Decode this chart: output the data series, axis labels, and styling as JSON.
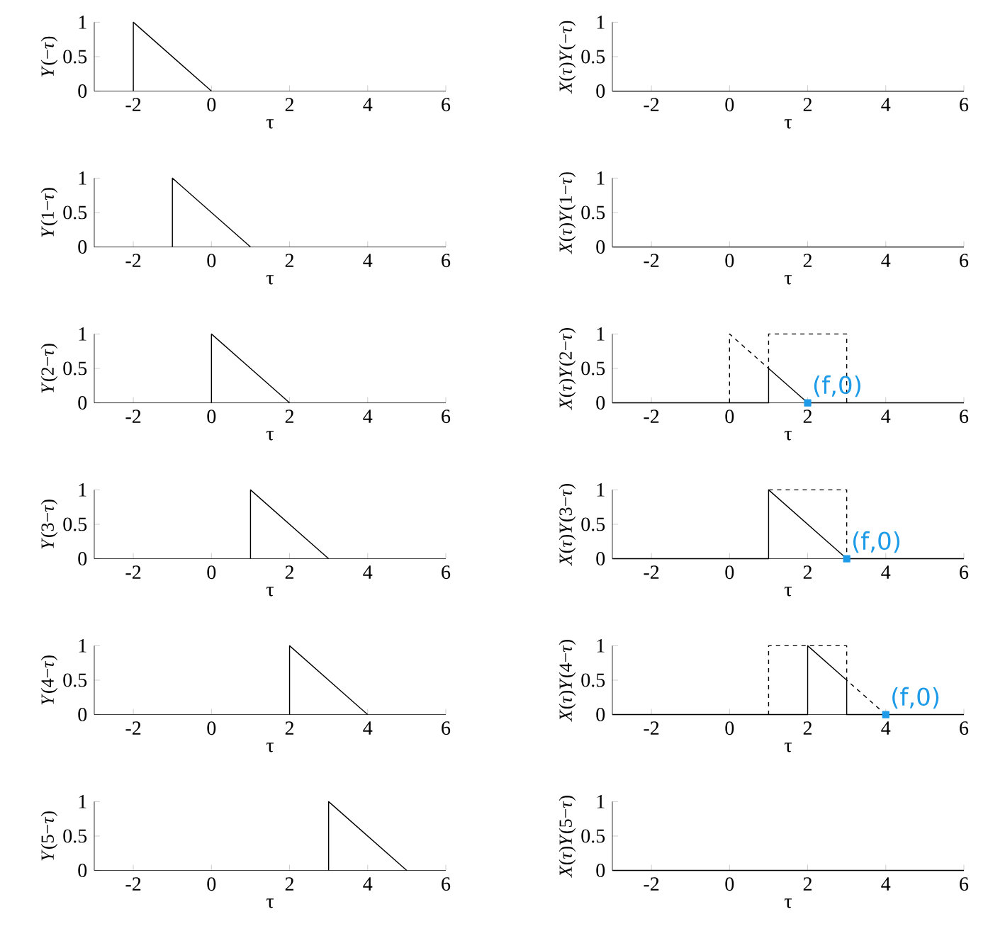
{
  "chart_data": [
    {
      "type": "line",
      "xlabel": "τ",
      "ylabel": "*Y*(−*τ*)",
      "xlim": [
        -3,
        6
      ],
      "xticks": [
        -2,
        0,
        2,
        4,
        6
      ],
      "ylim": [
        0,
        1
      ],
      "yticks": [
        0,
        0.5,
        1
      ],
      "series": [
        {
          "x": [
            -2,
            -2,
            0
          ],
          "values": [
            0,
            1,
            0
          ],
          "color": "#000000",
          "line_style": "solid"
        }
      ]
    },
    {
      "type": "line",
      "xlabel": "τ",
      "ylabel": "*X*(*τ*)*Y*(−*τ*)",
      "xlim": [
        -3,
        6
      ],
      "xticks": [
        -2,
        0,
        2,
        4,
        6
      ],
      "ylim": [
        0,
        1
      ],
      "yticks": [
        0,
        0.5,
        1
      ],
      "series": [
        {
          "x": [
            -3,
            6
          ],
          "values": [
            0,
            0
          ],
          "color": "#000000",
          "line_style": "solid"
        }
      ]
    },
    {
      "type": "line",
      "xlabel": "τ",
      "ylabel": "*Y*(1−*τ*)",
      "xlim": [
        -3,
        6
      ],
      "xticks": [
        -2,
        0,
        2,
        4,
        6
      ],
      "ylim": [
        0,
        1
      ],
      "yticks": [
        0,
        0.5,
        1
      ],
      "series": [
        {
          "x": [
            -1,
            -1,
            1
          ],
          "values": [
            0,
            1,
            0
          ],
          "color": "#000000",
          "line_style": "solid"
        }
      ]
    },
    {
      "type": "line",
      "xlabel": "τ",
      "ylabel": "*X*(*τ*)*Y*(1−*τ*)",
      "xlim": [
        -3,
        6
      ],
      "xticks": [
        -2,
        0,
        2,
        4,
        6
      ],
      "ylim": [
        0,
        1
      ],
      "yticks": [
        0,
        0.5,
        1
      ],
      "series": [
        {
          "x": [
            -3,
            6
          ],
          "values": [
            0,
            0
          ],
          "color": "#000000",
          "line_style": "solid"
        }
      ]
    },
    {
      "type": "line",
      "xlabel": "τ",
      "ylabel": "*Y*(2−*τ*)",
      "xlim": [
        -3,
        6
      ],
      "xticks": [
        -2,
        0,
        2,
        4,
        6
      ],
      "ylim": [
        0,
        1
      ],
      "yticks": [
        0,
        0.5,
        1
      ],
      "series": [
        {
          "x": [
            0,
            0,
            2
          ],
          "values": [
            0,
            1,
            0
          ],
          "color": "#000000",
          "line_style": "solid"
        }
      ]
    },
    {
      "type": "line",
      "xlabel": "τ",
      "ylabel": "*X*(*τ*)*Y*(2−*τ*)",
      "xlim": [
        -3,
        6
      ],
      "xticks": [
        -2,
        0,
        2,
        4,
        6
      ],
      "ylim": [
        0,
        1
      ],
      "yticks": [
        0,
        0.5,
        1
      ],
      "series": [
        {
          "x": [
            0,
            0,
            1,
            1,
            3,
            3
          ],
          "values": [
            0,
            1,
            0.5,
            1,
            1,
            0
          ],
          "color": "#000000",
          "line_style": "dashed"
        },
        {
          "x": [
            -3,
            1,
            1,
            2,
            6
          ],
          "values": [
            0,
            0,
            0.5,
            0,
            0
          ],
          "color": "#000000",
          "line_style": "solid"
        },
        {
          "type": "scatter",
          "x": [
            2
          ],
          "values": [
            0
          ],
          "color": "#1e9be8",
          "marker": "square"
        }
      ],
      "annotations": [
        {
          "text": "(f,0)",
          "x": 2,
          "y": 0
        }
      ]
    },
    {
      "type": "line",
      "xlabel": "τ",
      "ylabel": "*Y*(3−*τ*)",
      "xlim": [
        -3,
        6
      ],
      "xticks": [
        -2,
        0,
        2,
        4,
        6
      ],
      "ylim": [
        0,
        1
      ],
      "yticks": [
        0,
        0.5,
        1
      ],
      "series": [
        {
          "x": [
            1,
            1,
            3
          ],
          "values": [
            0,
            1,
            0
          ],
          "color": "#000000",
          "line_style": "solid"
        }
      ]
    },
    {
      "type": "line",
      "xlabel": "τ",
      "ylabel": "*X*(*τ*)*Y*(3−*τ*)",
      "xlim": [
        -3,
        6
      ],
      "xticks": [
        -2,
        0,
        2,
        4,
        6
      ],
      "ylim": [
        0,
        1
      ],
      "yticks": [
        0,
        0.5,
        1
      ],
      "series": [
        {
          "x": [
            1,
            3,
            3
          ],
          "values": [
            1,
            1,
            0
          ],
          "color": "#000000",
          "line_style": "dashed"
        },
        {
          "x": [
            -3,
            1,
            1,
            3,
            6
          ],
          "values": [
            0,
            0,
            1,
            0,
            0
          ],
          "color": "#000000",
          "line_style": "solid"
        },
        {
          "type": "scatter",
          "x": [
            3
          ],
          "values": [
            0
          ],
          "color": "#1e9be8",
          "marker": "square"
        }
      ],
      "annotations": [
        {
          "text": "(f,0)",
          "x": 3,
          "y": 0
        }
      ]
    },
    {
      "type": "line",
      "xlabel": "τ",
      "ylabel": "*Y*(4−*τ*)",
      "xlim": [
        -3,
        6
      ],
      "xticks": [
        -2,
        0,
        2,
        4,
        6
      ],
      "ylim": [
        0,
        1
      ],
      "yticks": [
        0,
        0.5,
        1
      ],
      "series": [
        {
          "x": [
            2,
            2,
            4
          ],
          "values": [
            0,
            1,
            0
          ],
          "color": "#000000",
          "line_style": "solid"
        }
      ]
    },
    {
      "type": "line",
      "xlabel": "τ",
      "ylabel": "*X*(*τ*)*Y*(4−*τ*)",
      "xlim": [
        -3,
        6
      ],
      "xticks": [
        -2,
        0,
        2,
        4,
        6
      ],
      "ylim": [
        0,
        1
      ],
      "yticks": [
        0,
        0.5,
        1
      ],
      "series": [
        {
          "x": [
            4,
            3,
            3,
            1,
            1
          ],
          "values": [
            0,
            0.5,
            1,
            1,
            0
          ],
          "color": "#000000",
          "line_style": "dashed"
        },
        {
          "x": [
            -3,
            2,
            2,
            3,
            3,
            6
          ],
          "values": [
            0,
            0,
            1,
            0.5,
            0,
            0
          ],
          "color": "#000000",
          "line_style": "solid"
        },
        {
          "type": "scatter",
          "x": [
            4
          ],
          "values": [
            0
          ],
          "color": "#1e9be8",
          "marker": "square"
        }
      ],
      "annotations": [
        {
          "text": "(f,0)",
          "x": 4,
          "y": 0
        }
      ]
    },
    {
      "type": "line",
      "xlabel": "τ",
      "ylabel": "*Y*(5−*τ*)",
      "xlim": [
        -3,
        6
      ],
      "xticks": [
        -2,
        0,
        2,
        4,
        6
      ],
      "ylim": [
        0,
        1
      ],
      "yticks": [
        0,
        0.5,
        1
      ],
      "series": [
        {
          "x": [
            3,
            3,
            5
          ],
          "values": [
            0,
            1,
            0
          ],
          "color": "#000000",
          "line_style": "solid"
        }
      ]
    },
    {
      "type": "line",
      "xlabel": "τ",
      "ylabel": "*X*(*τ*)*Y*(5−*τ*)",
      "xlim": [
        -3,
        6
      ],
      "xticks": [
        -2,
        0,
        2,
        4,
        6
      ],
      "ylim": [
        0,
        1
      ],
      "yticks": [
        0,
        0.5,
        1
      ],
      "series": [
        {
          "x": [
            -3,
            6
          ],
          "values": [
            0,
            0
          ],
          "color": "#000000",
          "line_style": "solid"
        }
      ]
    }
  ]
}
